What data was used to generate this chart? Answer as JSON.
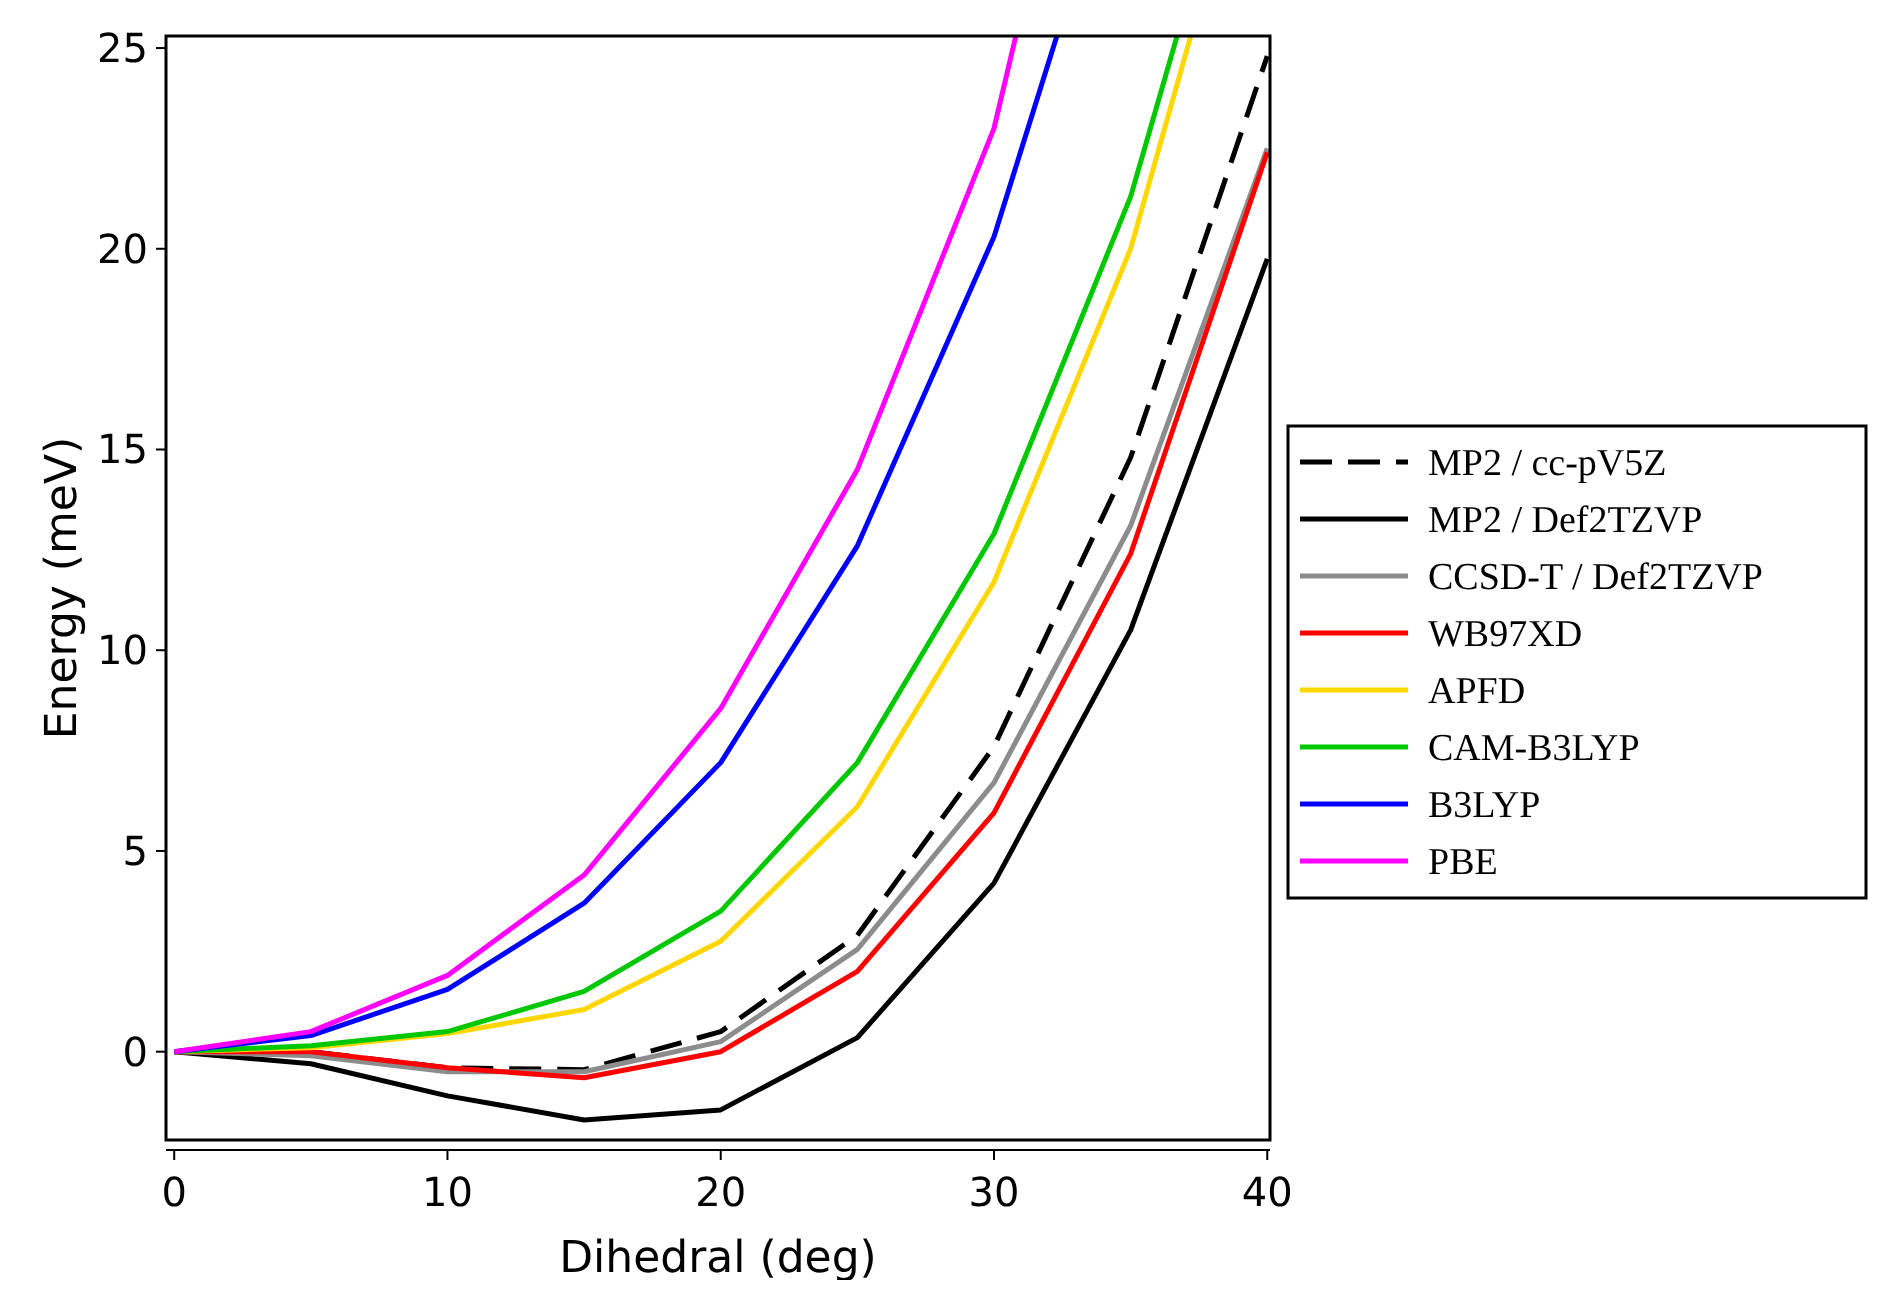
{
  "chart_data": {
    "type": "line",
    "xlabel": "Dihedral (deg)",
    "ylabel": "Energy (meV)",
    "xlim": [
      -0.3,
      40.1
    ],
    "ylim": [
      -2.2,
      25.3
    ],
    "xticks": [
      0,
      10,
      20,
      30,
      40
    ],
    "yticks": [
      0,
      5,
      10,
      15,
      20,
      25
    ],
    "grid": false,
    "legend": "right",
    "x": [
      0,
      5,
      10,
      15,
      20,
      25,
      30,
      35,
      40
    ],
    "series": [
      {
        "name": "MP2 / cc-pV5Z",
        "color": "#000000",
        "line_style": "dashed",
        "values": [
          0,
          0,
          -0.4,
          -0.45,
          0.5,
          2.9,
          7.6,
          14.8,
          24.8
        ]
      },
      {
        "name": "MP2 / Def2TZVP",
        "color": "#000000",
        "line_style": "solid",
        "values": [
          0,
          -0.3,
          -1.1,
          -1.7,
          -1.45,
          0.35,
          4.2,
          10.5,
          19.75
        ]
      },
      {
        "name": "CCSD-T / Def2TZVP",
        "color": "#8c8c8c",
        "line_style": "solid",
        "values": [
          0,
          -0.1,
          -0.5,
          -0.5,
          0.25,
          2.55,
          6.7,
          13.1,
          22.5
        ]
      },
      {
        "name": "WB97XD",
        "color": "#ff0000",
        "line_style": "solid",
        "values": [
          0,
          0,
          -0.4,
          -0.65,
          0,
          2,
          5.95,
          12.4,
          22.4
        ]
      },
      {
        "name": "APFD",
        "color": "#ffd700",
        "line_style": "solid",
        "x": [
          0,
          5,
          10,
          15,
          20,
          25,
          30,
          35,
          37.2
        ],
        "values": [
          0,
          0.1,
          0.45,
          1.05,
          2.75,
          6.1,
          11.7,
          20,
          25.3
        ]
      },
      {
        "name": "CAM-B3LYP",
        "color": "#00c800",
        "line_style": "solid",
        "x": [
          0,
          5,
          10,
          15,
          20,
          25,
          30,
          35,
          36.7
        ],
        "values": [
          0,
          0.15,
          0.5,
          1.5,
          3.5,
          7.2,
          12.9,
          21.3,
          25.3
        ]
      },
      {
        "name": "B3LYP",
        "color": "#0000ff",
        "line_style": "solid",
        "x": [
          0,
          5,
          10,
          15,
          20,
          25,
          30,
          32.3
        ],
        "values": [
          0,
          0.4,
          1.55,
          3.7,
          7.2,
          12.6,
          20.3,
          25.3
        ]
      },
      {
        "name": "PBE",
        "color": "#ff00ff",
        "line_style": "solid",
        "x": [
          0,
          5,
          10,
          15,
          20,
          25,
          30,
          30.8
        ],
        "values": [
          0,
          0.5,
          1.9,
          4.4,
          8.55,
          14.5,
          23,
          25.3
        ]
      }
    ]
  }
}
